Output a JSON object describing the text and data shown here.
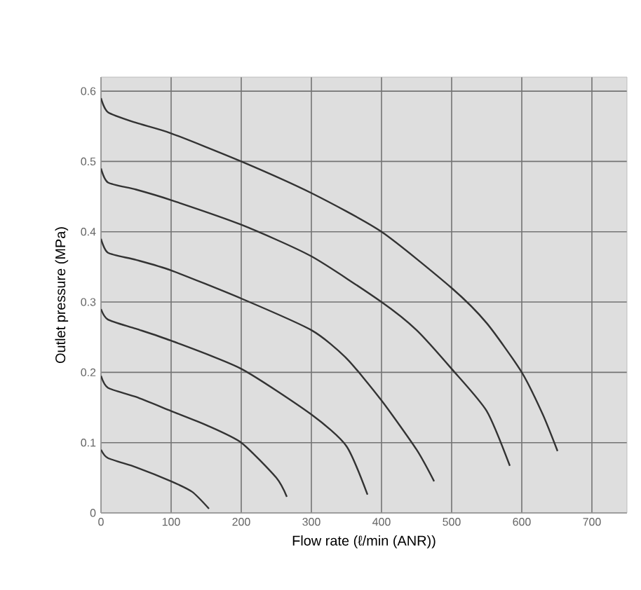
{
  "chart_data": {
    "type": "line",
    "xlabel": "Flow rate (ℓ/min (ANR))",
    "ylabel": "Outlet pressure (MPa)",
    "xlim": [
      0,
      750
    ],
    "ylim": [
      0,
      0.62
    ],
    "xticks": [
      0,
      100,
      200,
      300,
      400,
      500,
      600,
      700
    ],
    "yticks": [
      0,
      0.1,
      0.2,
      0.3,
      0.4,
      0.5,
      0.6
    ],
    "grid": true,
    "marker": "none",
    "line_style": "solid",
    "series": [
      {
        "color": "#333333",
        "x": [
          0,
          10,
          50,
          100,
          200,
          300,
          400,
          500,
          550,
          600,
          630,
          651
        ],
        "values": [
          0.59,
          0.57,
          0.555,
          0.54,
          0.5,
          0.455,
          0.4,
          0.32,
          0.27,
          0.2,
          0.14,
          0.088
        ]
      },
      {
        "color": "#333333",
        "x": [
          0,
          10,
          50,
          100,
          200,
          300,
          400,
          450,
          500,
          550,
          583
        ],
        "values": [
          0.49,
          0.47,
          0.46,
          0.445,
          0.41,
          0.365,
          0.3,
          0.26,
          0.205,
          0.145,
          0.067
        ]
      },
      {
        "color": "#333333",
        "x": [
          0,
          10,
          50,
          100,
          200,
          300,
          350,
          400,
          450,
          475
        ],
        "values": [
          0.39,
          0.37,
          0.36,
          0.345,
          0.305,
          0.26,
          0.22,
          0.16,
          0.09,
          0.045
        ]
      },
      {
        "color": "#333333",
        "x": [
          0,
          10,
          50,
          100,
          200,
          300,
          350,
          380
        ],
        "values": [
          0.29,
          0.275,
          0.262,
          0.245,
          0.205,
          0.14,
          0.095,
          0.026
        ]
      },
      {
        "color": "#333333",
        "x": [
          0,
          10,
          50,
          100,
          150,
          200,
          250,
          265
        ],
        "values": [
          0.195,
          0.178,
          0.165,
          0.145,
          0.125,
          0.1,
          0.05,
          0.023
        ]
      },
      {
        "color": "#333333",
        "x": [
          0,
          10,
          50,
          100,
          130,
          154
        ],
        "values": [
          0.09,
          0.078,
          0.065,
          0.045,
          0.03,
          0.006
        ]
      }
    ]
  }
}
